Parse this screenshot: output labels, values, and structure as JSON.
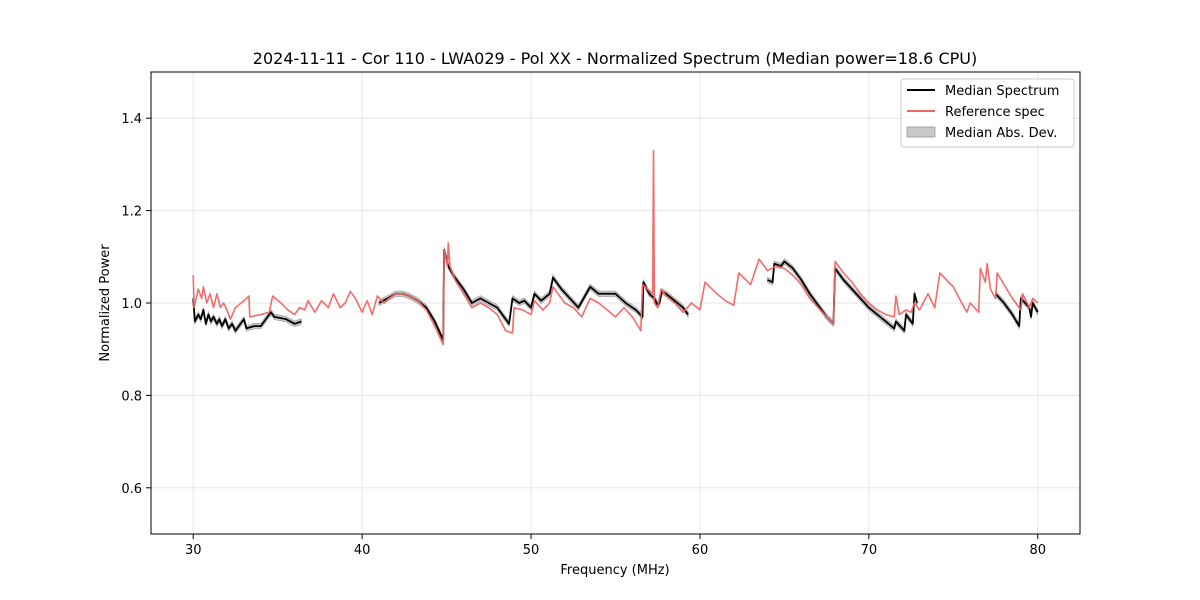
{
  "chart_data": {
    "type": "line",
    "title": "2024-11-11 - Cor 110 - LWA029 - Pol XX - Normalized Spectrum (Median power=18.6 CPU)",
    "xlabel": "Frequency (MHz)",
    "ylabel": "Normalized Power",
    "xlim": [
      27.5,
      82.5
    ],
    "ylim": [
      0.5,
      1.5
    ],
    "xticks": [
      30,
      40,
      50,
      60,
      70,
      80
    ],
    "yticks": [
      0.6,
      0.8,
      1.0,
      1.2,
      1.4
    ],
    "xtick_labels": [
      "30",
      "40",
      "50",
      "60",
      "70",
      "80"
    ],
    "ytick_labels": [
      "0.6",
      "0.8",
      "1.0",
      "1.2",
      "1.4"
    ],
    "grid": true,
    "legend_position": "top-right",
    "legend": [
      "Median Spectrum",
      "Reference spec",
      "Median Abs. Dev."
    ],
    "colors": {
      "median": "#000000",
      "reference": "#f26363",
      "mad_fill": "#c8c8c8",
      "overlap": "#8b0000"
    },
    "series": [
      {
        "name": "Median Spectrum",
        "segments": [
          [
            [
              30.0,
              1.01
            ],
            [
              30.1,
              0.96
            ],
            [
              30.3,
              0.975
            ],
            [
              30.45,
              0.965
            ],
            [
              30.6,
              0.985
            ],
            [
              30.75,
              0.955
            ],
            [
              30.9,
              0.975
            ],
            [
              31.05,
              0.96
            ],
            [
              31.2,
              0.97
            ],
            [
              31.4,
              0.955
            ],
            [
              31.55,
              0.965
            ],
            [
              31.7,
              0.95
            ],
            [
              31.9,
              0.965
            ],
            [
              32.1,
              0.945
            ],
            [
              32.3,
              0.955
            ],
            [
              32.5,
              0.94
            ],
            [
              32.7,
              0.95
            ],
            [
              33.0,
              0.965
            ],
            [
              33.15,
              0.945
            ],
            [
              33.6,
              0.95
            ],
            [
              34.0,
              0.95
            ],
            [
              34.2,
              0.96
            ],
            [
              34.6,
              0.98
            ],
            [
              34.8,
              0.97
            ],
            [
              35.5,
              0.965
            ],
            [
              36.0,
              0.955
            ],
            [
              36.4,
              0.96
            ]
          ],
          [
            [
              41.0,
              1.0
            ],
            [
              41.5,
              1.01
            ],
            [
              42.0,
              1.02
            ],
            [
              42.4,
              1.02
            ],
            [
              42.8,
              1.015
            ],
            [
              43.3,
              1.005
            ],
            [
              43.8,
              0.99
            ],
            [
              44.3,
              0.96
            ],
            [
              44.8,
              0.92
            ],
            [
              44.85,
              1.115
            ],
            [
              45.1,
              1.08
            ],
            [
              45.4,
              1.06
            ],
            [
              45.8,
              1.04
            ],
            [
              46.0,
              1.03
            ],
            [
              46.5,
              1.0
            ],
            [
              47.0,
              1.01
            ],
            [
              47.5,
              1.0
            ],
            [
              48.0,
              0.99
            ],
            [
              48.5,
              0.965
            ],
            [
              48.7,
              0.955
            ],
            [
              48.9,
              1.01
            ],
            [
              49.3,
              1.0
            ],
            [
              49.6,
              1.005
            ],
            [
              50.0,
              0.99
            ],
            [
              50.2,
              1.02
            ],
            [
              50.6,
              1.005
            ],
            [
              51.1,
              1.02
            ],
            [
              51.3,
              1.055
            ],
            [
              51.8,
              1.03
            ],
            [
              52.3,
              1.01
            ],
            [
              52.8,
              0.99
            ],
            [
              53.5,
              1.035
            ],
            [
              54.0,
              1.02
            ],
            [
              54.5,
              1.02
            ],
            [
              55.0,
              1.02
            ],
            [
              55.6,
              1.0
            ],
            [
              56.2,
              0.985
            ],
            [
              56.6,
              0.97
            ],
            [
              56.65,
              1.045
            ],
            [
              57.0,
              1.02
            ],
            [
              57.3,
              1.01
            ],
            [
              57.5,
              0.995
            ],
            [
              57.6,
              1.0
            ],
            [
              57.75,
              1.025
            ],
            [
              58.0,
              1.02
            ],
            [
              58.5,
              1.005
            ],
            [
              59.0,
              0.99
            ],
            [
              59.3,
              0.975
            ]
          ],
          [
            [
              64.0,
              1.05
            ],
            [
              64.3,
              1.045
            ],
            [
              64.4,
              1.085
            ],
            [
              64.8,
              1.08
            ],
            [
              65.0,
              1.09
            ],
            [
              65.5,
              1.075
            ],
            [
              66.0,
              1.05
            ],
            [
              66.5,
              1.02
            ],
            [
              67.0,
              0.995
            ],
            [
              67.5,
              0.97
            ],
            [
              67.9,
              0.955
            ],
            [
              68.0,
              1.075
            ],
            [
              68.5,
              1.05
            ],
            [
              69.0,
              1.03
            ],
            [
              69.5,
              1.01
            ],
            [
              70.0,
              0.99
            ],
            [
              70.5,
              0.975
            ],
            [
              71.0,
              0.96
            ],
            [
              71.5,
              0.945
            ],
            [
              71.6,
              0.96
            ],
            [
              72.1,
              0.94
            ],
            [
              72.2,
              0.975
            ],
            [
              72.6,
              0.955
            ],
            [
              72.7,
              1.02
            ],
            [
              72.85,
              1.0
            ]
          ],
          [
            [
              77.5,
              1.02
            ],
            [
              78.0,
              1.0
            ],
            [
              78.5,
              0.975
            ],
            [
              78.9,
              0.95
            ],
            [
              79.0,
              1.01
            ],
            [
              79.5,
              0.99
            ],
            [
              79.6,
              0.97
            ],
            [
              79.7,
              1.0
            ],
            [
              80.0,
              0.98
            ]
          ]
        ]
      },
      {
        "name": "Reference spec",
        "segments": [
          [
            [
              30.0,
              1.06
            ],
            [
              30.05,
              0.99
            ],
            [
              30.3,
              1.03
            ],
            [
              30.5,
              1.01
            ],
            [
              30.6,
              1.035
            ],
            [
              30.8,
              1.0
            ],
            [
              31.0,
              1.02
            ],
            [
              31.2,
              0.99
            ],
            [
              31.4,
              1.02
            ],
            [
              31.6,
              0.99
            ],
            [
              31.8,
              1.0
            ],
            [
              32.0,
              0.985
            ],
            [
              32.2,
              0.965
            ],
            [
              32.5,
              0.99
            ],
            [
              33.0,
              1.005
            ],
            [
              33.3,
              1.015
            ],
            [
              33.35,
              0.97
            ],
            [
              34.0,
              0.975
            ],
            [
              34.5,
              0.98
            ],
            [
              34.7,
              1.015
            ],
            [
              35.2,
              1.0
            ],
            [
              35.6,
              0.985
            ],
            [
              36.0,
              0.975
            ],
            [
              36.3,
              0.99
            ],
            [
              36.6,
              0.985
            ],
            [
              36.8,
              1.005
            ],
            [
              37.2,
              0.98
            ],
            [
              37.6,
              1.005
            ],
            [
              38.0,
              0.99
            ],
            [
              38.3,
              1.02
            ],
            [
              38.7,
              0.99
            ],
            [
              39.0,
              1.0
            ],
            [
              39.3,
              1.025
            ],
            [
              39.6,
              1.01
            ],
            [
              40.0,
              0.98
            ],
            [
              40.3,
              1.005
            ],
            [
              40.6,
              0.975
            ],
            [
              40.9,
              1.015
            ],
            [
              41.3,
              1.0
            ],
            [
              41.6,
              1.01
            ],
            [
              42.0,
              1.02
            ],
            [
              42.4,
              1.02
            ],
            [
              42.8,
              1.015
            ],
            [
              43.3,
              1.005
            ],
            [
              43.8,
              0.985
            ],
            [
              44.3,
              0.95
            ],
            [
              44.8,
              0.91
            ],
            [
              44.85,
              1.115
            ],
            [
              45.05,
              1.08
            ],
            [
              45.1,
              1.13
            ],
            [
              45.2,
              1.08
            ],
            [
              45.5,
              1.05
            ],
            [
              46.0,
              1.02
            ],
            [
              46.5,
              0.99
            ],
            [
              47.0,
              1.0
            ],
            [
              47.5,
              0.99
            ],
            [
              48.0,
              0.975
            ],
            [
              48.5,
              0.94
            ],
            [
              48.9,
              0.935
            ],
            [
              49.0,
              0.99
            ],
            [
              49.5,
              0.985
            ],
            [
              50.0,
              0.975
            ],
            [
              50.2,
              1.005
            ],
            [
              50.7,
              0.985
            ],
            [
              51.1,
              1.0
            ],
            [
              51.3,
              1.035
            ],
            [
              52.0,
              1.0
            ],
            [
              52.5,
              0.99
            ],
            [
              53.0,
              0.97
            ],
            [
              53.5,
              1.01
            ],
            [
              54.0,
              1.0
            ],
            [
              54.5,
              0.985
            ],
            [
              55.0,
              0.97
            ],
            [
              55.5,
              0.99
            ],
            [
              56.0,
              0.97
            ],
            [
              56.5,
              0.94
            ],
            [
              56.6,
              1.04
            ],
            [
              57.2,
              1.02
            ],
            [
              57.25,
              1.33
            ],
            [
              57.3,
              1.0
            ],
            [
              57.5,
              0.99
            ],
            [
              57.7,
              1.03
            ],
            [
              58.0,
              1.015
            ],
            [
              58.5,
              1.0
            ],
            [
              59.0,
              0.98
            ],
            [
              59.5,
              1.0
            ],
            [
              60.0,
              0.985
            ],
            [
              60.3,
              1.045
            ],
            [
              61.0,
              1.02
            ],
            [
              61.5,
              1.005
            ],
            [
              62.0,
              0.995
            ],
            [
              62.3,
              1.065
            ],
            [
              63.0,
              1.04
            ],
            [
              63.5,
              1.095
            ],
            [
              64.0,
              1.07
            ],
            [
              64.5,
              1.08
            ],
            [
              65.0,
              1.075
            ],
            [
              65.5,
              1.06
            ],
            [
              66.0,
              1.04
            ],
            [
              66.5,
              1.01
            ],
            [
              67.0,
              0.99
            ],
            [
              67.5,
              0.97
            ],
            [
              67.9,
              0.955
            ],
            [
              68.0,
              1.09
            ],
            [
              68.5,
              1.065
            ],
            [
              69.0,
              1.045
            ],
            [
              69.5,
              1.02
            ],
            [
              70.0,
              1.0
            ],
            [
              70.5,
              0.985
            ],
            [
              71.0,
              0.975
            ],
            [
              71.5,
              0.97
            ],
            [
              71.6,
              1.015
            ],
            [
              71.8,
              0.975
            ],
            [
              72.2,
              0.985
            ],
            [
              72.5,
              0.98
            ],
            [
              72.7,
              1.0
            ],
            [
              73.0,
              0.985
            ],
            [
              73.5,
              1.02
            ],
            [
              73.9,
              0.99
            ],
            [
              74.2,
              1.065
            ],
            [
              75.0,
              1.035
            ],
            [
              75.5,
              1.0
            ],
            [
              75.8,
              0.98
            ],
            [
              76.0,
              1.0
            ],
            [
              76.5,
              0.98
            ],
            [
              76.6,
              1.075
            ],
            [
              76.9,
              1.045
            ],
            [
              77.0,
              1.085
            ],
            [
              77.2,
              1.03
            ],
            [
              77.5,
              1.01
            ],
            [
              77.6,
              1.065
            ],
            [
              78.0,
              1.04
            ],
            [
              78.5,
              1.01
            ],
            [
              79.0,
              0.985
            ],
            [
              79.1,
              1.02
            ],
            [
              79.5,
              0.99
            ],
            [
              79.7,
              1.01
            ],
            [
              80.0,
              1.0
            ]
          ]
        ]
      }
    ],
    "mad_band_width": 0.006
  }
}
